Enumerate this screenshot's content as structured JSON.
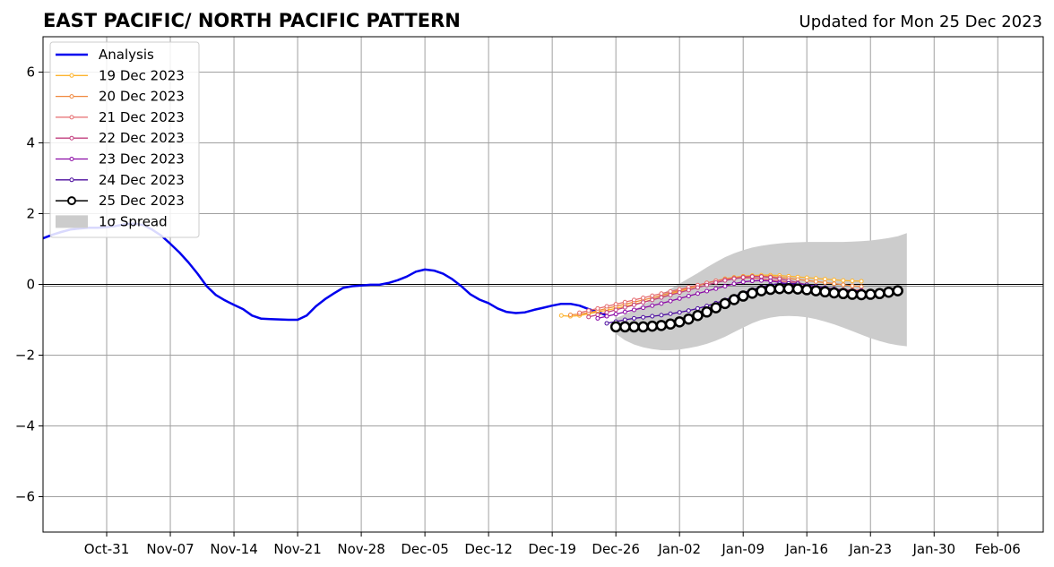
{
  "chart_data": {
    "type": "line",
    "title": "EAST PACIFIC/ NORTH PACIFIC PATTERN",
    "subtitle": "Updated for Mon 25 Dec 2023",
    "xlabel": "",
    "ylabel": "",
    "x_axis": {
      "kind": "date",
      "range": [
        "2023-10-24",
        "2024-02-11"
      ],
      "ticks": [
        "2023-10-31",
        "2023-11-07",
        "2023-11-14",
        "2023-11-21",
        "2023-11-28",
        "2023-12-05",
        "2023-12-12",
        "2023-12-19",
        "2023-12-26",
        "2024-01-02",
        "2024-01-09",
        "2024-01-16",
        "2024-01-23",
        "2024-01-30",
        "2024-02-06"
      ],
      "tick_labels": [
        "Oct-31",
        "Nov-07",
        "Nov-14",
        "Nov-21",
        "Nov-28",
        "Dec-05",
        "Dec-12",
        "Dec-19",
        "Dec-26",
        "Jan-02",
        "Jan-09",
        "Jan-16",
        "Jan-23",
        "Jan-30",
        "Feb-06"
      ]
    },
    "y_axis": {
      "range": [
        -7,
        7
      ],
      "ticks": [
        -6,
        -4,
        -2,
        0,
        2,
        4,
        6
      ],
      "tick_labels": [
        "−6",
        "−4",
        "−2",
        "0",
        "2",
        "4",
        "6"
      ]
    },
    "grid": true,
    "zero_line": true,
    "legend": {
      "position": "top-left"
    },
    "analysis": {
      "name": "Analysis",
      "color": "#0000ee",
      "points": [
        [
          "2023-10-24",
          1.3
        ],
        [
          "2023-10-25",
          1.4
        ],
        [
          "2023-10-26",
          1.48
        ],
        [
          "2023-10-27",
          1.55
        ],
        [
          "2023-10-28",
          1.58
        ],
        [
          "2023-10-29",
          1.6
        ],
        [
          "2023-10-30",
          1.6
        ],
        [
          "2023-10-31",
          1.62
        ],
        [
          "2023-11-01",
          1.65
        ],
        [
          "2023-11-02",
          1.7
        ],
        [
          "2023-11-03",
          1.72
        ],
        [
          "2023-11-04",
          1.68
        ],
        [
          "2023-11-05",
          1.55
        ],
        [
          "2023-11-06",
          1.38
        ],
        [
          "2023-11-07",
          1.15
        ],
        [
          "2023-11-08",
          0.9
        ],
        [
          "2023-11-09",
          0.62
        ],
        [
          "2023-11-10",
          0.3
        ],
        [
          "2023-11-11",
          -0.05
        ],
        [
          "2023-11-12",
          -0.3
        ],
        [
          "2023-11-13",
          -0.45
        ],
        [
          "2023-11-14",
          -0.58
        ],
        [
          "2023-11-15",
          -0.7
        ],
        [
          "2023-11-16",
          -0.88
        ],
        [
          "2023-11-17",
          -0.97
        ],
        [
          "2023-11-18",
          -0.98
        ],
        [
          "2023-11-19",
          -0.99
        ],
        [
          "2023-11-20",
          -1.0
        ],
        [
          "2023-11-21",
          -1.0
        ],
        [
          "2023-11-22",
          -0.88
        ],
        [
          "2023-11-23",
          -0.62
        ],
        [
          "2023-11-24",
          -0.42
        ],
        [
          "2023-11-25",
          -0.25
        ],
        [
          "2023-11-26",
          -0.1
        ],
        [
          "2023-11-27",
          -0.05
        ],
        [
          "2023-11-28",
          -0.03
        ],
        [
          "2023-11-29",
          -0.01
        ],
        [
          "2023-11-30",
          -0.01
        ],
        [
          "2023-12-01",
          0.04
        ],
        [
          "2023-12-02",
          0.12
        ],
        [
          "2023-12-03",
          0.22
        ],
        [
          "2023-12-04",
          0.36
        ],
        [
          "2023-12-05",
          0.42
        ],
        [
          "2023-12-06",
          0.39
        ],
        [
          "2023-12-07",
          0.3
        ],
        [
          "2023-12-08",
          0.15
        ],
        [
          "2023-12-09",
          -0.05
        ],
        [
          "2023-12-10",
          -0.28
        ],
        [
          "2023-12-11",
          -0.43
        ],
        [
          "2023-12-12",
          -0.53
        ],
        [
          "2023-12-13",
          -0.68
        ],
        [
          "2023-12-14",
          -0.78
        ],
        [
          "2023-12-15",
          -0.81
        ],
        [
          "2023-12-16",
          -0.79
        ],
        [
          "2023-12-17",
          -0.72
        ],
        [
          "2023-12-18",
          -0.66
        ],
        [
          "2023-12-19",
          -0.6
        ],
        [
          "2023-12-20",
          -0.55
        ],
        [
          "2023-12-21",
          -0.55
        ],
        [
          "2023-12-22",
          -0.6
        ],
        [
          "2023-12-23",
          -0.7
        ],
        [
          "2023-12-24",
          -0.78
        ],
        [
          "2023-12-25",
          -0.88
        ]
      ]
    },
    "forecasts": [
      {
        "name": "19 Dec 2023",
        "color": "#fdb42f",
        "start": "2023-12-20",
        "values": [
          -0.88,
          -0.9,
          -0.88,
          -0.83,
          -0.78,
          -0.73,
          -0.68,
          -0.62,
          -0.56,
          -0.5,
          -0.43,
          -0.36,
          -0.28,
          -0.2,
          -0.12,
          -0.04,
          0.04,
          0.1,
          0.16,
          0.2,
          0.23,
          0.25,
          0.26,
          0.26,
          0.25,
          0.23,
          0.21,
          0.19,
          0.17,
          0.15,
          0.13,
          0.11,
          0.1,
          0.09
        ]
      },
      {
        "name": "20 Dec 2023",
        "color": "#f0883e",
        "start": "2023-12-21",
        "values": [
          -0.86,
          -0.84,
          -0.8,
          -0.74,
          -0.68,
          -0.62,
          -0.56,
          -0.5,
          -0.44,
          -0.38,
          -0.31,
          -0.24,
          -0.17,
          -0.1,
          -0.03,
          0.04,
          0.1,
          0.15,
          0.19,
          0.22,
          0.23,
          0.23,
          0.22,
          0.2,
          0.17,
          0.14,
          0.11,
          0.08,
          0.05,
          0.02,
          -0.01,
          -0.04,
          -0.06
        ]
      },
      {
        "name": "21 Dec 2023",
        "color": "#e56b6f",
        "start": "2023-12-22",
        "values": [
          -0.8,
          -0.74,
          -0.68,
          -0.62,
          -0.56,
          -0.5,
          -0.44,
          -0.38,
          -0.32,
          -0.26,
          -0.2,
          -0.14,
          -0.08,
          -0.02,
          0.04,
          0.1,
          0.14,
          0.17,
          0.18,
          0.18,
          0.16,
          0.13,
          0.1,
          0.06,
          0.02,
          -0.02,
          -0.06,
          -0.1,
          -0.13,
          -0.15,
          -0.16,
          -0.16
        ]
      },
      {
        "name": "22 Dec 2023",
        "color": "#c2407f",
        "start": "2023-12-23",
        "values": [
          -0.92,
          -0.86,
          -0.79,
          -0.72,
          -0.65,
          -0.58,
          -0.51,
          -0.44,
          -0.37,
          -0.3,
          -0.23,
          -0.16,
          -0.09,
          -0.02,
          0.05,
          0.11,
          0.16,
          0.2,
          0.22,
          0.22,
          0.2,
          0.16,
          0.11,
          0.05,
          -0.01,
          -0.07,
          -0.12,
          -0.16,
          -0.19,
          -0.2,
          -0.2
        ]
      },
      {
        "name": "23 Dec 2023",
        "color": "#8b0aa5",
        "start": "2023-12-24",
        "values": [
          -0.96,
          -0.9,
          -0.84,
          -0.78,
          -0.72,
          -0.66,
          -0.6,
          -0.54,
          -0.47,
          -0.4,
          -0.33,
          -0.26,
          -0.19,
          -0.12,
          -0.05,
          0.02,
          0.07,
          0.1,
          0.11,
          0.1,
          0.06,
          0.01,
          -0.05,
          -0.11,
          -0.16,
          -0.2,
          -0.22,
          -0.22,
          -0.2,
          -0.18
        ]
      },
      {
        "name": "24 Dec 2023",
        "color": "#4b0c9e",
        "start": "2023-12-25",
        "values": [
          -1.1,
          -1.05,
          -1.0,
          -0.96,
          -0.93,
          -0.9,
          -0.87,
          -0.83,
          -0.79,
          -0.74,
          -0.68,
          -0.61,
          -0.53,
          -0.44,
          -0.34,
          -0.24,
          -0.15,
          -0.07,
          -0.01,
          0.02,
          0.03,
          0.02,
          -0.01,
          -0.05,
          -0.09,
          -0.13,
          -0.16,
          -0.18,
          -0.18
        ]
      }
    ],
    "forecast_25": {
      "name": "25 Dec 2023",
      "color": "#000000",
      "start": "2023-12-26",
      "values": [
        -1.2,
        -1.2,
        -1.2,
        -1.2,
        -1.18,
        -1.16,
        -1.12,
        -1.06,
        -0.98,
        -0.88,
        -0.78,
        -0.66,
        -0.54,
        -0.43,
        -0.33,
        -0.25,
        -0.18,
        -0.14,
        -0.12,
        -0.12,
        -0.13,
        -0.15,
        -0.18,
        -0.21,
        -0.24,
        -0.26,
        -0.28,
        -0.29,
        -0.28,
        -0.26,
        -0.22,
        -0.18
      ]
    },
    "spread": {
      "name": "1σ Spread",
      "color": "#cccccc",
      "start": "2023-12-26",
      "upper": [
        -0.95,
        -0.85,
        -0.72,
        -0.58,
        -0.43,
        -0.28,
        -0.13,
        0.02,
        0.17,
        0.32,
        0.48,
        0.63,
        0.77,
        0.88,
        0.97,
        1.04,
        1.09,
        1.13,
        1.16,
        1.18,
        1.19,
        1.2,
        1.2,
        1.2,
        1.2,
        1.2,
        1.21,
        1.22,
        1.24,
        1.27,
        1.31,
        1.36,
        1.45
      ],
      "lower": [
        -1.4,
        -1.58,
        -1.7,
        -1.78,
        -1.83,
        -1.86,
        -1.86,
        -1.84,
        -1.8,
        -1.75,
        -1.68,
        -1.59,
        -1.48,
        -1.35,
        -1.22,
        -1.1,
        -1.0,
        -0.94,
        -0.9,
        -0.89,
        -0.9,
        -0.93,
        -0.98,
        -1.05,
        -1.13,
        -1.22,
        -1.32,
        -1.42,
        -1.52,
        -1.6,
        -1.67,
        -1.72,
        -1.75
      ]
    }
  }
}
